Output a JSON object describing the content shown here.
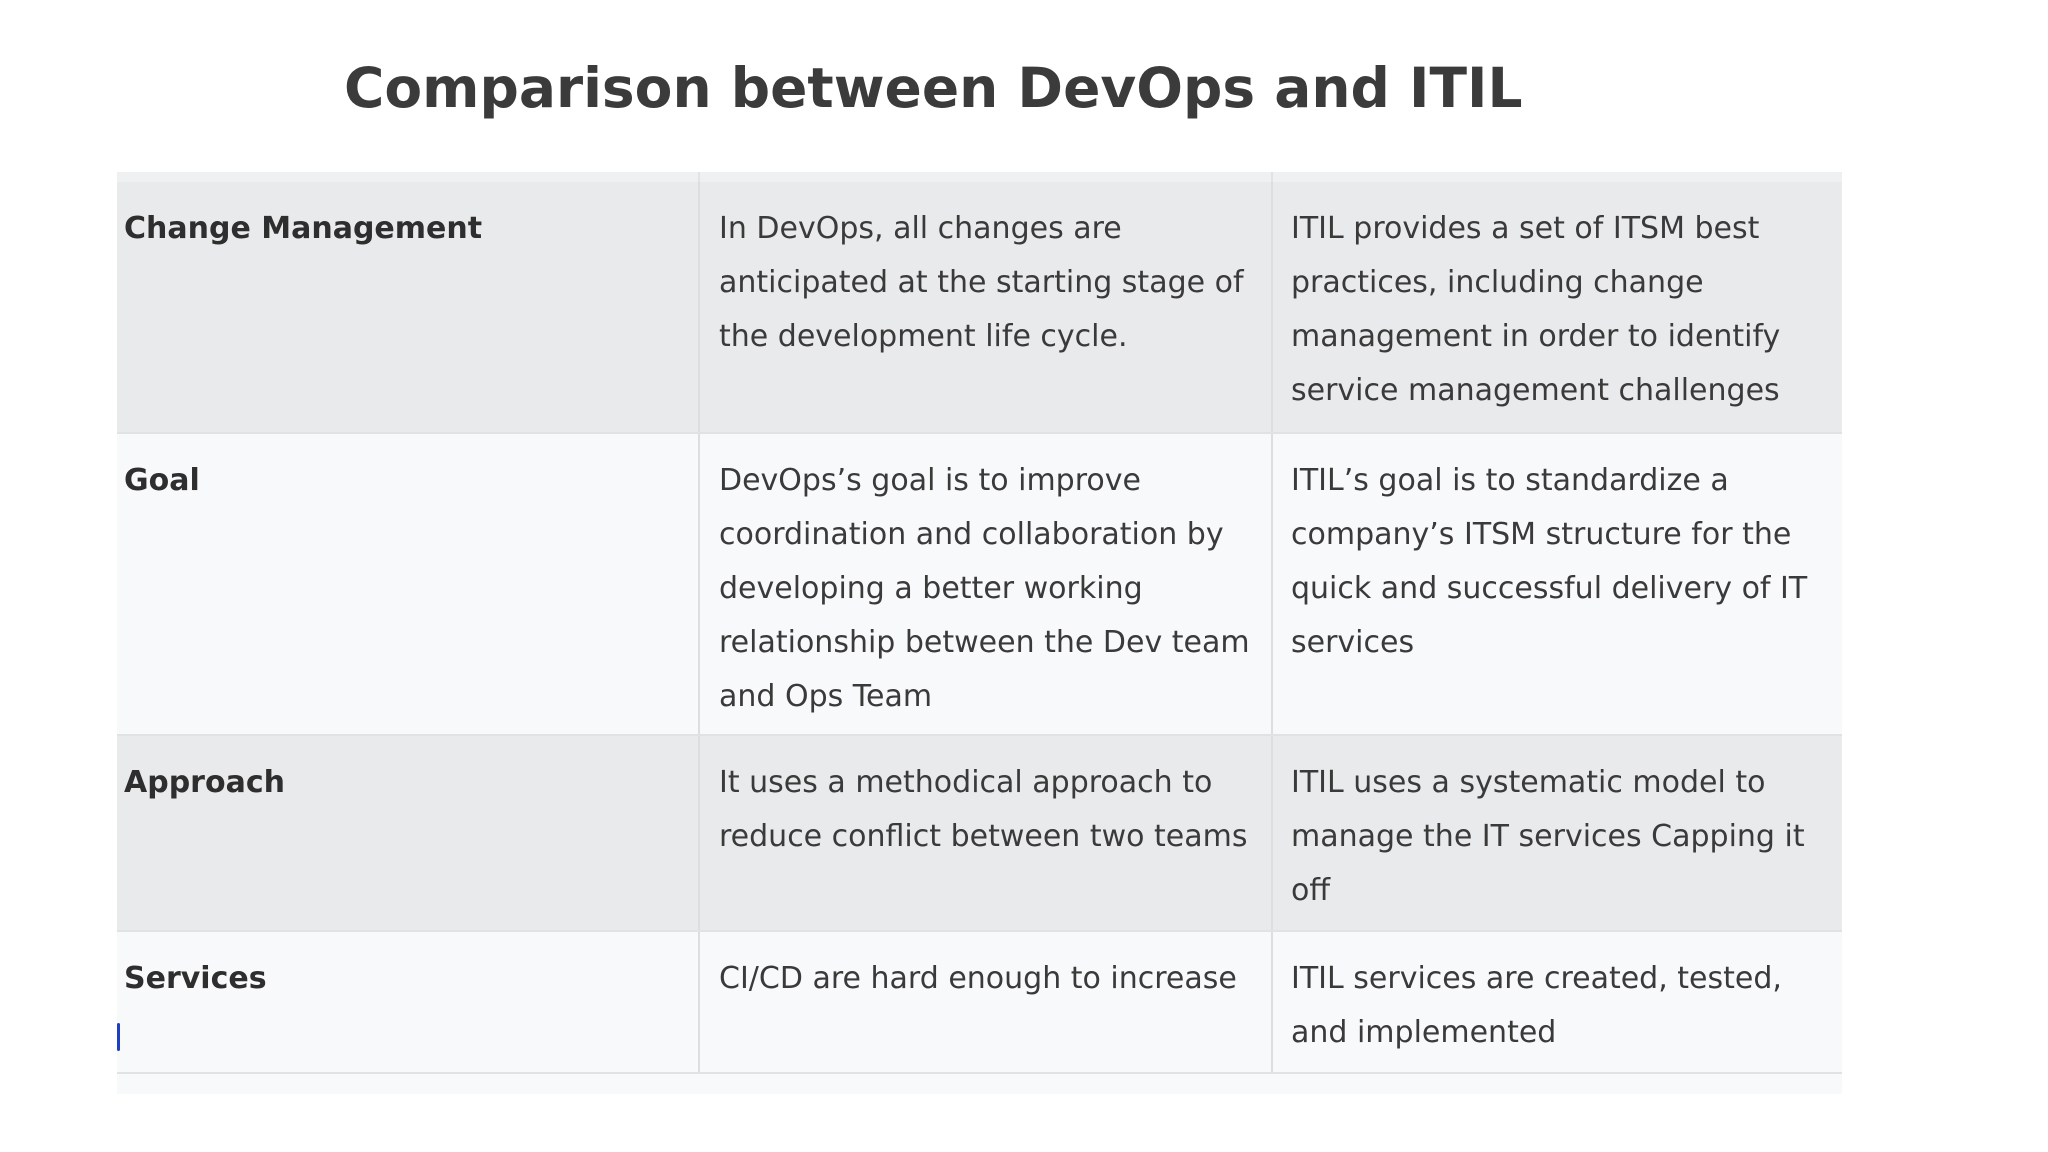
{
  "title": "Comparison between DevOps and ITIL",
  "table": {
    "rows": [
      {
        "label": "Change Management",
        "devops": "In DevOps, all changes are anticipated at the starting stage of the development life cycle.",
        "itil": "ITIL provides a set of ITSM best practices, including change management in order to identify service management challenges"
      },
      {
        "label": "Goal",
        "devops": "DevOps’s goal is to improve coordination and collaboration by developing a better working relationship between the Dev team and Ops Team",
        "itil": "ITIL’s goal is to standardize a company’s ITSM structure for the quick and successful delivery of IT services"
      },
      {
        "label": "Approach",
        "devops": "It uses a methodical approach to reduce conflict between two teams",
        "itil": "ITIL uses a systematic model to manage the IT services Capping it off"
      },
      {
        "label": "Services",
        "devops": "CI/CD are hard enough to increase",
        "itil": "ITIL services are created, tested, and implemented"
      }
    ]
  },
  "colors": {
    "title": "#3b3b3b",
    "row_shaded": "#e9eaeb",
    "row_light": "#f8f9fa",
    "grid_line": "#e0e2e4",
    "text": "#3a3a3a"
  }
}
